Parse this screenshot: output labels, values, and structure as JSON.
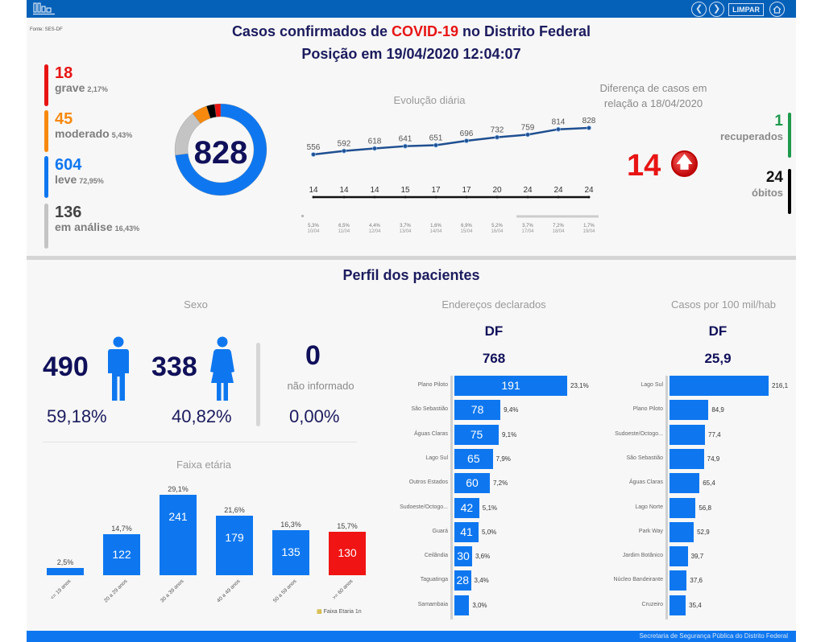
{
  "header": {
    "logo_icon": "bar-chart-icon",
    "buttons": {
      "back_icon": "chevron-left-icon",
      "forward_icon": "chevron-right-icon",
      "limpar_label": "LIMPAR",
      "home_icon": "home-icon"
    }
  },
  "source": "Fonte: SES-DF",
  "title": {
    "prefix": "Casos confirmados de ",
    "highlight": "COVID-19",
    "suffix": " no Distrito Federal",
    "position": "Posição em 19/04/2020 12:04:07"
  },
  "severity": [
    {
      "value": "18",
      "label": "grave",
      "pct": "2,17%",
      "color": "#e81414"
    },
    {
      "value": "45",
      "label": "moderado",
      "pct": "5,43%",
      "color": "#f7890f"
    },
    {
      "value": "604",
      "label": "leve",
      "pct": "72,95%",
      "color": "#0e77f0"
    },
    {
      "value": "136",
      "label": "em análise",
      "pct": "16,43%",
      "color": "#c4c4c4"
    }
  ],
  "donut": {
    "total": "828",
    "segments": [
      {
        "name": "grave",
        "value": 18,
        "color": "#e81414"
      },
      {
        "name": "obitos",
        "value": 24,
        "color": "#000000"
      },
      {
        "name": "moderado",
        "value": 45,
        "color": "#f7890f"
      },
      {
        "name": "em análise",
        "value": 136,
        "color": "#c4c4c4"
      },
      {
        "name": "leve",
        "value": 604,
        "color": "#0e77f0"
      }
    ]
  },
  "evolution": {
    "title": "Evolução diária",
    "dates": [
      "10/04",
      "11/04",
      "12/04",
      "13/04",
      "14/04",
      "15/04",
      "16/04",
      "17/04",
      "18/04",
      "19/04"
    ],
    "cases": [
      556,
      592,
      618,
      641,
      651,
      696,
      732,
      759,
      814,
      828
    ],
    "deaths": [
      14,
      14,
      14,
      15,
      17,
      17,
      20,
      24,
      24,
      24
    ],
    "growth": [
      "5,3%",
      "6,5%",
      "4,4%",
      "3,7%",
      "1,6%",
      "6,9%",
      "5,2%",
      "3,7%",
      "7,2%",
      "1,7%"
    ]
  },
  "difference": {
    "title": "Diferença de casos em relação a 18/04/2020",
    "value": "14",
    "icon": "arrow-up-circle-icon",
    "recovered": {
      "value": "1",
      "label": "recuperados",
      "color": "#1e9a4c"
    },
    "deaths": {
      "value": "24",
      "label": "óbitos",
      "color": "#000000"
    }
  },
  "profile_title": "Perfil dos pacientes",
  "sex": {
    "title": "Sexo",
    "male": {
      "value": "490",
      "pct": "59,18%",
      "icon": "male-icon"
    },
    "female": {
      "value": "338",
      "pct": "40,82%",
      "icon": "female-icon"
    },
    "unknown": {
      "value": "0",
      "label": "não informado",
      "pct": "0,00%"
    }
  },
  "chart_data": [
    {
      "type": "bar",
      "title": "Faixa etária",
      "categories": [
        "<= 19 anos",
        "20 a 29 anos",
        "30 a 39 anos",
        "40 a 49 anos",
        "50 a 59 anos",
        ">= 60 anos"
      ],
      "values": [
        21,
        122,
        241,
        179,
        135,
        130
      ],
      "value_labels": [
        "",
        "122",
        "241",
        "179",
        "135",
        "130"
      ],
      "pct_labels": [
        "2,5%",
        "14,7%",
        "29,1%",
        "21,6%",
        "16,3%",
        "15,7%"
      ],
      "colors": [
        "#0e77f0",
        "#0e77f0",
        "#0e77f0",
        "#0e77f0",
        "#0e77f0",
        "#f01414"
      ],
      "legend": "Faixa Etaria 1n"
    },
    {
      "type": "bar",
      "orientation": "horizontal",
      "title": "Endereços declarados",
      "region": "DF",
      "total": "768",
      "categories": [
        "Plano Piloto",
        "São Sebastião",
        "Águas Claras",
        "Lago Sul",
        "Outros Estados",
        "Sudoeste/Octogo...",
        "Guará",
        "Ceilândia",
        "Taguatinga",
        "Samambaia"
      ],
      "values": [
        191,
        78,
        75,
        65,
        60,
        42,
        41,
        30,
        28,
        25
      ],
      "value_labels": [
        "191",
        "78",
        "75",
        "65",
        "60",
        "42",
        "41",
        "30",
        "28",
        ""
      ],
      "pct_labels": [
        "23,1%",
        "9,4%",
        "9,1%",
        "7,9%",
        "7,2%",
        "5,1%",
        "5,0%",
        "3,6%",
        "3,4%",
        "3,0%"
      ]
    },
    {
      "type": "bar",
      "orientation": "horizontal",
      "title": "Casos por 100 mil/hab",
      "region": "DF",
      "total": "25,9",
      "categories": [
        "Lago Sul",
        "Plano Piloto",
        "Sudoeste/Octogo...",
        "São Sebastião",
        "Águas Claras",
        "Lago Norte",
        "Park Way",
        "Jardim Botânico",
        "Núcleo Bandeirante",
        "Cruzeiro"
      ],
      "values": [
        216.1,
        84.9,
        77.4,
        74.9,
        65.4,
        56.8,
        52.9,
        39.7,
        37.6,
        35.4
      ],
      "value_labels": [
        "216,1",
        "84,9",
        "77,4",
        "74,9",
        "65,4",
        "56,8",
        "52,9",
        "39,7",
        "37,6",
        "35,4"
      ]
    }
  ],
  "footer": "Secretaria de Segurança Pública do Distrito Federal"
}
